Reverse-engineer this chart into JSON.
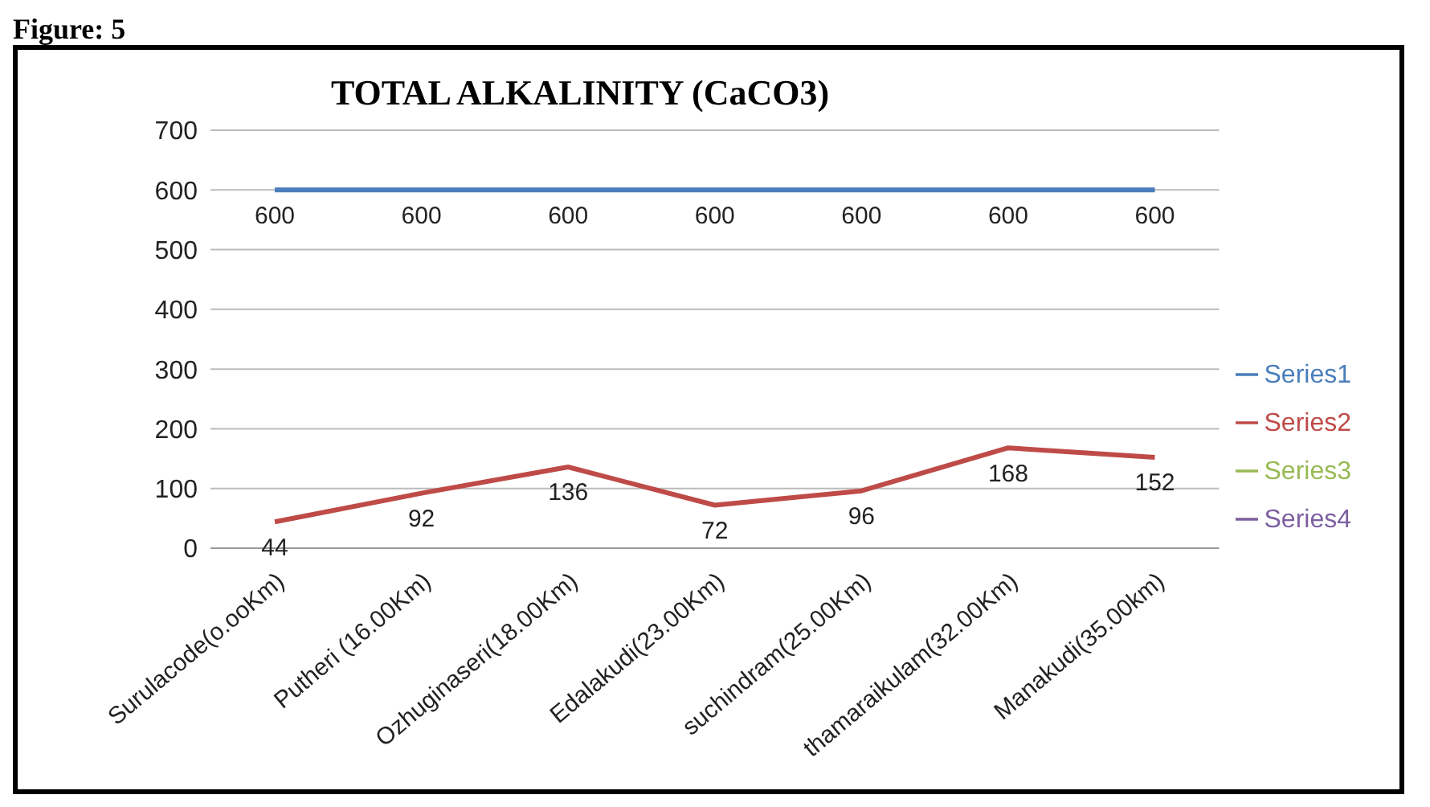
{
  "chart_data": {
    "type": "line",
    "title": "TOTAL ALKALINITY (CaCO3)",
    "annotations": [
      "Figure: 5"
    ],
    "categories": [
      "Surulacode(o.ooKm)",
      "Putheri (16.00Km)",
      "Ozhuginaseri(18.00Km)",
      "Edalakudi(23.00Km)",
      "suchindram(25.00Km)",
      "thamaraikulam(32.00Km)",
      "Manakudi(35.00km)"
    ],
    "series": [
      {
        "name": "Series1",
        "color": "#4a7ebb",
        "values": [
          600,
          600,
          600,
          600,
          600,
          600,
          600
        ]
      },
      {
        "name": "Series2",
        "color": "#be4b48",
        "values": [
          44,
          92,
          136,
          72,
          96,
          168,
          152
        ]
      },
      {
        "name": "Series3",
        "color": "#98b954",
        "values": [
          null,
          null,
          null,
          null,
          null,
          null,
          null
        ]
      },
      {
        "name": "Series4",
        "color": "#7d60a0",
        "values": [
          null,
          null,
          null,
          null,
          null,
          null,
          null
        ]
      }
    ],
    "ylim": [
      0,
      700
    ],
    "yticks": [
      0,
      100,
      200,
      300,
      400,
      500,
      600,
      700
    ],
    "grid": "y",
    "legend": "right",
    "marker": "none",
    "line_style": "solid",
    "data_labels": true
  }
}
